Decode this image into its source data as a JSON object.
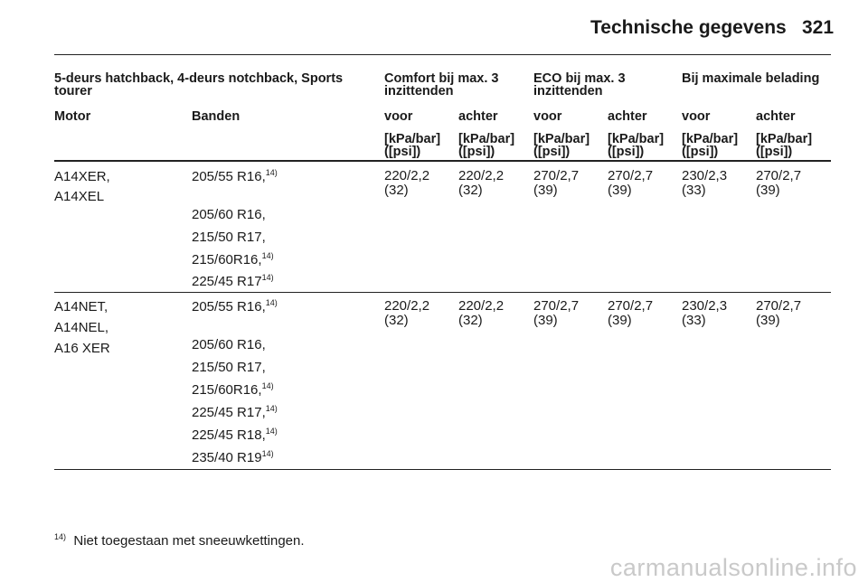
{
  "header": {
    "title": "Technische gegevens",
    "page_number": "321"
  },
  "table": {
    "group_headers": {
      "vehicle": "5-deurs hatchback, 4-deurs notchback, Sports tourer",
      "comfort": "Comfort bij max. 3 inzittenden",
      "eco": "ECO bij max. 3 inzittenden",
      "max": "Bij maximale belading"
    },
    "columns": {
      "motor": "Motor",
      "banden": "Banden",
      "voor": "voor",
      "achter": "achter"
    },
    "unit_line1": "[kPa/bar]",
    "unit_line2": "([psi])",
    "rows": [
      {
        "motor": [
          "A14XER,",
          "A14XEL"
        ],
        "tyres": [
          {
            "text": "205/55 R16,",
            "note": "14)"
          },
          {
            "text": "205/60 R16,",
            "note": ""
          },
          {
            "text": "215/50 R17,",
            "note": ""
          },
          {
            "text": "215/60R16,",
            "note": "14)"
          },
          {
            "text": "225/45 R17",
            "note": "14)"
          }
        ],
        "values": [
          {
            "kpa": "220/2,2",
            "psi": "(32)"
          },
          {
            "kpa": "220/2,2",
            "psi": "(32)"
          },
          {
            "kpa": "270/2,7",
            "psi": "(39)"
          },
          {
            "kpa": "270/2,7",
            "psi": "(39)"
          },
          {
            "kpa": "230/2,3",
            "psi": "(33)"
          },
          {
            "kpa": "270/2,7",
            "psi": "(39)"
          }
        ]
      },
      {
        "motor": [
          "A14NET,",
          "A14NEL,",
          "A16 XER"
        ],
        "tyres": [
          {
            "text": "205/55 R16,",
            "note": "14)"
          },
          {
            "text": "205/60 R16,",
            "note": ""
          },
          {
            "text": "215/50 R17,",
            "note": ""
          },
          {
            "text": "215/60R16,",
            "note": "14)"
          },
          {
            "text": "225/45 R17,",
            "note": "14)"
          },
          {
            "text": "225/45 R18,",
            "note": "14)"
          },
          {
            "text": "235/40 R19",
            "note": "14)"
          }
        ],
        "values": [
          {
            "kpa": "220/2,2",
            "psi": "(32)"
          },
          {
            "kpa": "220/2,2",
            "psi": "(32)"
          },
          {
            "kpa": "270/2,7",
            "psi": "(39)"
          },
          {
            "kpa": "270/2,7",
            "psi": "(39)"
          },
          {
            "kpa": "230/2,3",
            "psi": "(33)"
          },
          {
            "kpa": "270/2,7",
            "psi": "(39)"
          }
        ]
      }
    ]
  },
  "footnote": {
    "marker": "14)",
    "text": "Niet toegestaan met sneeuwkettingen."
  },
  "watermark": "carmanualsonline.info"
}
